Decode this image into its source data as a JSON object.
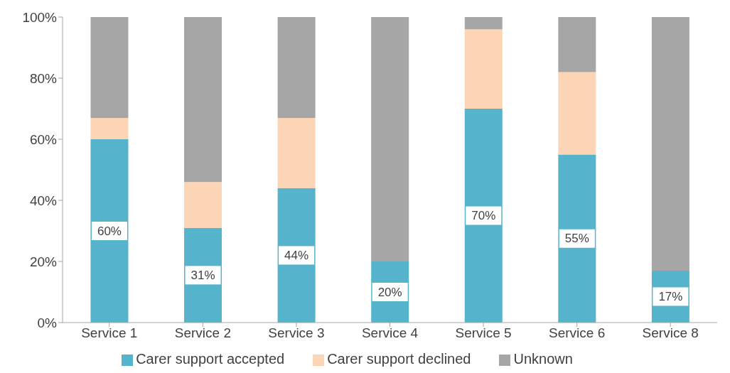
{
  "chart_data": {
    "type": "bar",
    "stacked": true,
    "categories": [
      "Service 1",
      "Service 2",
      "Service 3",
      "Service 4",
      "Service 5",
      "Service 6",
      "Service 8"
    ],
    "series": [
      {
        "name": "Carer support accepted",
        "color": "#56b3cc",
        "values": [
          60,
          31,
          44,
          20,
          70,
          55,
          17
        ],
        "value_labels": [
          "60%",
          "31%",
          "44%",
          "20%",
          "70%",
          "55%",
          "17%"
        ]
      },
      {
        "name": "Carer support declined",
        "color": "#fbd5b5",
        "values": [
          7,
          15,
          23,
          0,
          26,
          27,
          0
        ]
      },
      {
        "name": "Unknown",
        "color": "#a6a6a6",
        "values": [
          33,
          54,
          33,
          80,
          4,
          18,
          83
        ]
      }
    ],
    "ylim": [
      0,
      100
    ],
    "yticks": [
      {
        "value": 0,
        "label": "0%"
      },
      {
        "value": 20,
        "label": "20%"
      },
      {
        "value": 40,
        "label": "40%"
      },
      {
        "value": 60,
        "label": "60%"
      },
      {
        "value": 80,
        "label": "80%"
      },
      {
        "value": 100,
        "label": "100%"
      }
    ],
    "grid": false,
    "legend": "bottom"
  }
}
